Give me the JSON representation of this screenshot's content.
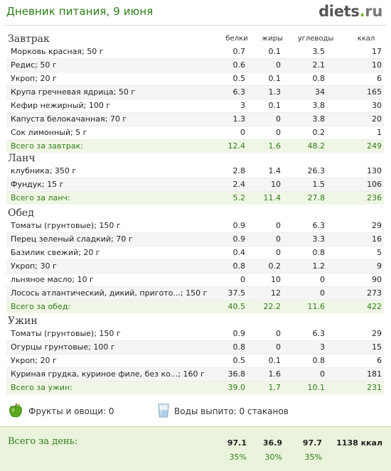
{
  "header": {
    "title": "Дневник питания, 9 июня",
    "logo_main": "diets",
    "logo_dot": ".",
    "logo_tld": "ru"
  },
  "columns": {
    "protein": "белки",
    "fat": "жиры",
    "carbs": "углеводы",
    "kcal": "ккал"
  },
  "meals": [
    {
      "name": "Завтрак",
      "items": [
        {
          "name": "Морковь красная; 50 г",
          "b": "0.7",
          "j": "0.1",
          "u": "3.5",
          "k": "17"
        },
        {
          "name": "Редис; 50 г",
          "b": "0.6",
          "j": "0",
          "u": "2.1",
          "k": "10"
        },
        {
          "name": "Укроп; 20 г",
          "b": "0.5",
          "j": "0.1",
          "u": "0.8",
          "k": "6"
        },
        {
          "name": "Крупа гречневая ядрица; 50 г",
          "b": "6.3",
          "j": "1.3",
          "u": "34",
          "k": "165"
        },
        {
          "name": "Кефир нежирный; 100 г",
          "b": "3",
          "j": "0.1",
          "u": "3.8",
          "k": "30"
        },
        {
          "name": "Капуста белокачанная; 70 г",
          "b": "1.3",
          "j": "0",
          "u": "3.8",
          "k": "20"
        },
        {
          "name": "Сок лимонный; 5 г",
          "b": "0",
          "j": "0",
          "u": "0.2",
          "k": "1"
        }
      ],
      "total": {
        "label": "Всего за завтрак:",
        "b": "12.4",
        "j": "1.6",
        "u": "48.2",
        "k": "249"
      }
    },
    {
      "name": "Ланч",
      "items": [
        {
          "name": "клубника; 350 г",
          "b": "2.8",
          "j": "1.4",
          "u": "26.3",
          "k": "130"
        },
        {
          "name": "Фундук; 15 г",
          "b": "2.4",
          "j": "10",
          "u": "1.5",
          "k": "106"
        }
      ],
      "total": {
        "label": "Всего за ланч:",
        "b": "5.2",
        "j": "11.4",
        "u": "27.8",
        "k": "236"
      }
    },
    {
      "name": "Обед",
      "items": [
        {
          "name": "Томаты (грунтовые); 150 г",
          "b": "0.9",
          "j": "0",
          "u": "6.3",
          "k": "29"
        },
        {
          "name": "Перец зеленый сладкий; 70 г",
          "b": "0.9",
          "j": "0",
          "u": "3.3",
          "k": "16"
        },
        {
          "name": "Базилик свежий; 20 г",
          "b": "0.4",
          "j": "0",
          "u": "0.8",
          "k": "5"
        },
        {
          "name": "Укроп; 30 г",
          "b": "0.8",
          "j": "0.2",
          "u": "1.2",
          "k": "9"
        },
        {
          "name": "льняное масло; 10 г",
          "b": "0",
          "j": "10",
          "u": "0",
          "k": "90"
        },
        {
          "name": "Лосось атлантический, дикий, пригото...; 150 г",
          "b": "37.5",
          "j": "12",
          "u": "0",
          "k": "273"
        }
      ],
      "total": {
        "label": "Всего за обед:",
        "b": "40.5",
        "j": "22.2",
        "u": "11.6",
        "k": "422"
      }
    },
    {
      "name": "Ужин",
      "items": [
        {
          "name": "Томаты (грунтовые); 150 г",
          "b": "0.9",
          "j": "0",
          "u": "6.3",
          "k": "29"
        },
        {
          "name": "Огурцы грунтовые; 100 г",
          "b": "0.8",
          "j": "0",
          "u": "3",
          "k": "15"
        },
        {
          "name": "Укроп; 20 г",
          "b": "0.5",
          "j": "0.1",
          "u": "0.8",
          "k": "6"
        },
        {
          "name": "Куриная грудка, куриное филе, без ко...; 160 г",
          "b": "36.8",
          "j": "1.6",
          "u": "0",
          "k": "181"
        }
      ],
      "total": {
        "label": "Всего за ужин:",
        "b": "39.0",
        "j": "1.7",
        "u": "10.1",
        "k": "231"
      }
    }
  ],
  "extras": {
    "fruit_label": "Фрукты и овощи: 0",
    "water_label": "Воды выпито: 0 стаканов",
    "apple_icon": "green-apple-icon",
    "glass_icon": "water-glass-icon",
    "colors": {
      "apple": "#5aa81e",
      "glass": "#9fc6e0"
    }
  },
  "day_total": {
    "label": "Всего за день:",
    "b": "97.1",
    "j": "36.9",
    "u": "97.7",
    "k": "1138 ккал",
    "b_pct": "35%",
    "j_pct": "30%",
    "u_pct": "35%"
  },
  "theme": {
    "accent": "#2e7d18",
    "total_row_bg": "#f0f6e6",
    "day_bg": "#eaf3dc"
  }
}
